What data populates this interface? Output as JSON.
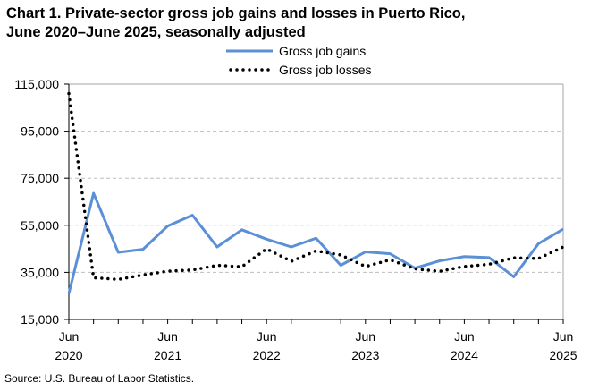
{
  "chart_data": {
    "type": "line",
    "title_line1": "Chart 1. Private-sector gross job gains and losses in Puerto Rico,",
    "title_line2": "June 2020–June 2025, seasonally adjusted",
    "xlabel": "",
    "ylabel": "",
    "ylim": [
      15000,
      115000
    ],
    "yticks": [
      "115,000",
      "95,000",
      "75,000",
      "55,000",
      "35,000",
      "15,000"
    ],
    "ytick_values": [
      115000,
      95000,
      75000,
      55000,
      35000,
      15000
    ],
    "xticks": [
      {
        "month": "Jun",
        "year": "2020"
      },
      {
        "month": "Jun",
        "year": "2021"
      },
      {
        "month": "Jun",
        "year": "2022"
      },
      {
        "month": "Jun",
        "year": "2023"
      },
      {
        "month": "Jun",
        "year": "2024"
      },
      {
        "month": "Jun",
        "year": "2025"
      }
    ],
    "x": [
      "Jun 2020",
      "Sep 2020",
      "Dec 2020",
      "Mar 2021",
      "Jun 2021",
      "Sep 2021",
      "Dec 2021",
      "Mar 2022",
      "Jun 2022",
      "Sep 2022",
      "Dec 2022",
      "Mar 2023",
      "Jun 2023",
      "Sep 2023",
      "Dec 2023",
      "Mar 2024",
      "Jun 2024",
      "Sep 2024",
      "Dec 2024",
      "Mar 2025",
      "Jun 2025"
    ],
    "grid": "horizontal dashed",
    "legend": "top-center",
    "series": [
      {
        "name": "Gross job gains",
        "color": "#5b8fd6",
        "style": "solid",
        "values": [
          26000,
          68600,
          43500,
          44800,
          54700,
          59300,
          45800,
          53100,
          49100,
          45800,
          49500,
          38000,
          43700,
          42900,
          36800,
          39900,
          41700,
          41300,
          33100,
          47200,
          53400
        ]
      },
      {
        "name": "Gross job losses",
        "color": "#000000",
        "style": "dotted",
        "values": [
          111000,
          32700,
          32000,
          33900,
          35500,
          36000,
          38000,
          37400,
          45000,
          39700,
          44100,
          42400,
          37500,
          40300,
          36500,
          35400,
          37500,
          38400,
          41200,
          40900,
          45800
        ]
      }
    ]
  },
  "source": "Source: U.S. Bureau of Labor Statistics."
}
